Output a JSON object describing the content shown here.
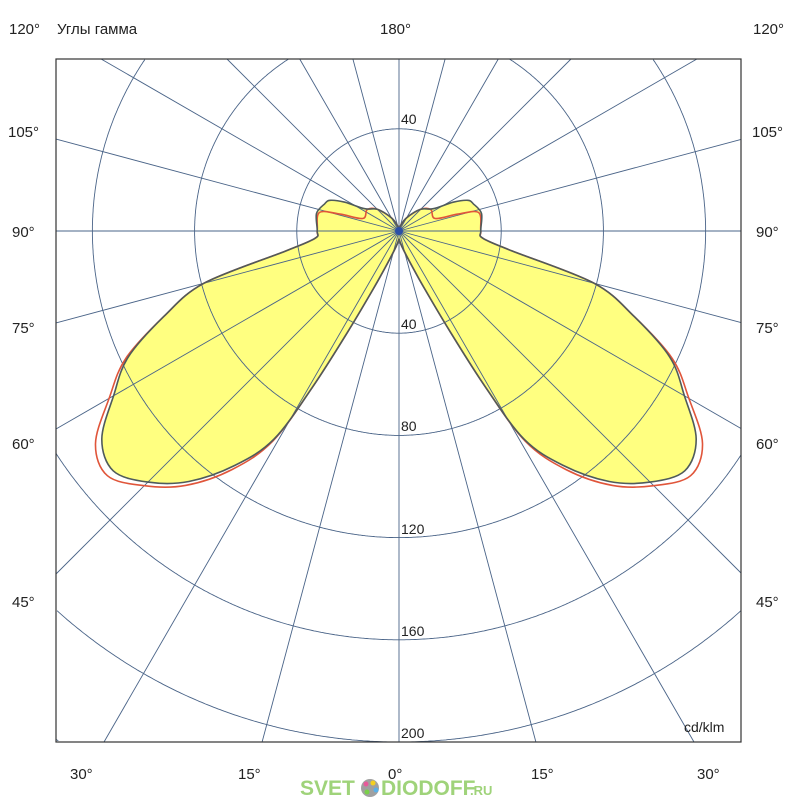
{
  "chart_data": {
    "type": "polar",
    "title": "Углы гамма",
    "unit_label": "cd/klm",
    "radial_ticks": [
      "40",
      "80",
      "120",
      "160",
      "200"
    ],
    "radial_range": [
      0,
      280
    ],
    "radial_step": 40,
    "angle_step_deg": 15,
    "grid": true,
    "top_labels": {
      "left": "120°",
      "center": "180°",
      "right": "120°"
    },
    "side_labels": [
      "105°",
      "90°",
      "75°",
      "60°",
      "45°"
    ],
    "bottom_labels": [
      "30°",
      "15°",
      "0°",
      "15°",
      "30°"
    ],
    "symmetric": true,
    "series": [
      {
        "color": "#4f5b5b",
        "fill": "#ffff80",
        "gamma": [
          0,
          10,
          20,
          24,
          27,
          29,
          31,
          35,
          40,
          45,
          50,
          55,
          60,
          65,
          70,
          75,
          80,
          85,
          90,
          102,
          110,
          114,
          118,
          123,
          135,
          150,
          165,
          180
        ],
        "intensity": [
          3,
          6,
          14,
          25,
          45,
          70,
          95,
          112,
          128,
          139,
          146,
          142,
          129,
          117,
          98,
          79,
          45,
          33,
          32,
          33,
          31,
          29.5,
          24,
          16,
          12,
          6,
          2,
          0
        ]
      },
      {
        "color": "#e0553a",
        "gamma": [
          0,
          10,
          20,
          24,
          27,
          29,
          31,
          35,
          40,
          45,
          50,
          55,
          60,
          65,
          70,
          75,
          80,
          85,
          90,
          103,
          106,
          109,
          124,
          135,
          150,
          165,
          180
        ],
        "intensity": [
          3,
          6,
          14,
          25,
          45,
          70,
          96,
          114,
          130,
          141,
          149,
          145,
          131,
          118,
          98,
          79,
          45,
          33,
          32,
          32,
          24,
          15,
          15,
          12,
          6,
          2,
          0
        ]
      }
    ]
  },
  "watermark": {
    "left": "SVET",
    "right": "DIODOFF",
    "suffix": ".RU"
  }
}
